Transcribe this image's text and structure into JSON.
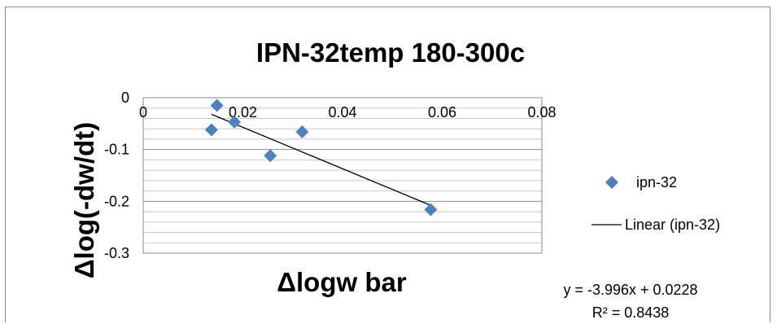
{
  "chart_data": {
    "type": "scatter",
    "title": "IPN-32temp 180-300c",
    "xlabel": "Δlogw bar",
    "ylabel": "Δlog(-dw/dt)",
    "xlim": [
      0,
      0.08
    ],
    "ylim": [
      -0.3,
      0
    ],
    "x_ticks": [
      "0",
      "0.02",
      "0.04",
      "0.06",
      "0.08"
    ],
    "y_ticks": [
      "0",
      "-0.1",
      "-0.2",
      "-0.3"
    ],
    "series": [
      {
        "name": "ipn-32",
        "marker": "diamond",
        "color": "#4f81bd",
        "points": [
          {
            "x": 0.0148,
            "y": -0.015
          },
          {
            "x": 0.0183,
            "y": -0.047
          },
          {
            "x": 0.0137,
            "y": -0.062
          },
          {
            "x": 0.0319,
            "y": -0.066
          },
          {
            "x": 0.0255,
            "y": -0.112
          },
          {
            "x": 0.0577,
            "y": -0.216
          }
        ]
      }
    ],
    "trendline": {
      "name": "Linear (ipn-32)",
      "color": "#000000",
      "slope": -3.996,
      "intercept": 0.0228,
      "x_range": [
        0.0137,
        0.0577
      ]
    },
    "equation": "y = -3.996x + 0.0228",
    "r_squared": "R² = 0.8438",
    "gridlines": "horizontal major and minor",
    "legend_position": "right"
  }
}
